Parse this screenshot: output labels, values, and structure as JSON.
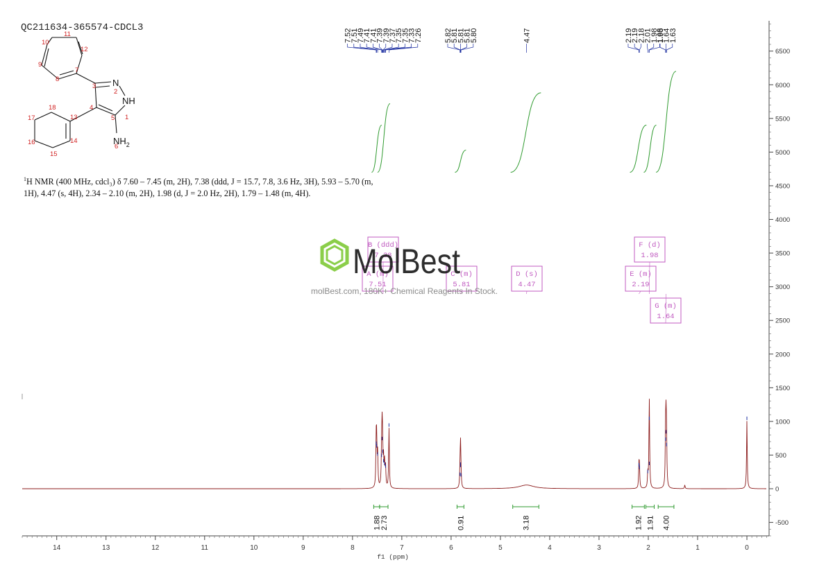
{
  "sample_id": "QC211634-365574-CDCL3",
  "nmr_description": {
    "superscript": "1",
    "line1": "H NMR (400 MHz, cdcl₃) δ 7.60 – 7.45 (m, 2H), 7.38 (ddd, J = 15.7, 7.8, 3.6 Hz, 3H), 5.93 – 5.70 (m,",
    "line2": "1H), 4.47 (s, 4H), 2.34 – 2.10 (m, 2H), 1.98 (d, J = 2.0 Hz, 2H), 1.79 – 1.48 (m, 4H)."
  },
  "structure": {
    "atom_numbers": [
      "1",
      "2",
      "3",
      "4",
      "5",
      "6",
      "7",
      "8",
      "9",
      "10",
      "11",
      "12",
      "13",
      "14",
      "15",
      "16",
      "17",
      "18"
    ],
    "labels": {
      "N": "N",
      "NH": "NH",
      "NH2": "NH",
      "NH2_sub": "2"
    }
  },
  "watermark": {
    "brand": "MolBest",
    "url": "molBest.com, 180K+ Chemical Reagents In Stock."
  },
  "colors": {
    "spectrum": "#8b1a1a",
    "peak_marker": "#1c2ea0",
    "integral": "#2e9a2e",
    "region_box": "#c05ac0",
    "logo_green": "#7cc832",
    "axis": "#444444"
  },
  "chart_data": {
    "type": "line",
    "title": "QC211634-365574-CDCL3",
    "xlabel": "f1 (ppm)",
    "ylabel": "",
    "x_reversed": true,
    "xlim": [
      14.7,
      -0.45
    ],
    "ylim": [
      -700,
      6950
    ],
    "x_ticks": [
      "14",
      "13",
      "12",
      "11",
      "10",
      "9",
      "8",
      "7",
      "6",
      "5",
      "4",
      "3",
      "2",
      "1",
      "0"
    ],
    "y_ticks": [
      "-500",
      "0",
      "500",
      "1000",
      "1500",
      "2000",
      "2500",
      "3000",
      "3500",
      "4000",
      "4500",
      "5000",
      "5500",
      "6000",
      "6500"
    ],
    "peaks": [
      {
        "ppm": 7.52,
        "height": 640
      },
      {
        "ppm": 7.51,
        "height": 600
      },
      {
        "ppm": 7.49,
        "height": 480
      },
      {
        "ppm": 7.41,
        "height": 460
      },
      {
        "ppm": 7.4,
        "height": 710
      },
      {
        "ppm": 7.39,
        "height": 520
      },
      {
        "ppm": 7.37,
        "height": 380
      },
      {
        "ppm": 7.35,
        "height": 340
      },
      {
        "ppm": 7.33,
        "height": 300
      },
      {
        "ppm": 7.26,
        "height": 910
      },
      {
        "ppm": 5.82,
        "height": 180
      },
      {
        "ppm": 5.81,
        "height": 310
      },
      {
        "ppm": 5.81,
        "height": 330
      },
      {
        "ppm": 5.8,
        "height": 170
      },
      {
        "ppm": 4.47,
        "height": 55,
        "width": 0.18
      },
      {
        "ppm": 2.19,
        "height": 320
      },
      {
        "ppm": 2.18,
        "height": 280
      },
      {
        "ppm": 2.01,
        "height": 220
      },
      {
        "ppm": 1.98,
        "height": 1010
      },
      {
        "ppm": 1.98,
        "height": 340
      },
      {
        "ppm": 1.65,
        "height": 700
      },
      {
        "ppm": 1.64,
        "height": 810
      },
      {
        "ppm": 1.63,
        "height": 620
      },
      {
        "ppm": 1.26,
        "height": 55
      },
      {
        "ppm": 0.0,
        "height": 1010
      }
    ],
    "peak_labels": [
      {
        "group": [
          "7.52",
          "7.51",
          "7.49",
          "7.41",
          "7.41",
          "7.39",
          "7.39",
          "7.37",
          "7.35",
          "7.35",
          "7.33",
          "7.26"
        ],
        "ppm": [
          7.52,
          7.51,
          7.49,
          7.41,
          7.4,
          7.39,
          7.38,
          7.37,
          7.35,
          7.34,
          7.33,
          7.26
        ]
      },
      {
        "group": [
          "5.82",
          "5.81",
          "5.81",
          "5.81",
          "5.80"
        ],
        "ppm": [
          5.82,
          5.815,
          5.81,
          5.805,
          5.8
        ]
      },
      {
        "group": [
          "4.47"
        ],
        "ppm": [
          4.47
        ]
      },
      {
        "group": [
          "2.19",
          "2.19",
          "2.18",
          "2.01",
          "1.98",
          "1.98"
        ],
        "ppm": [
          2.19,
          2.185,
          2.18,
          2.01,
          1.985,
          1.98
        ]
      },
      {
        "group": [
          "1.65",
          "1.64",
          "1.63"
        ],
        "ppm": [
          1.65,
          1.64,
          1.63
        ]
      }
    ],
    "integrals": [
      {
        "from": 7.57,
        "to": 7.45,
        "value": "1.88",
        "curve_start": 4700,
        "curve_end": 5400
      },
      {
        "from": 7.45,
        "to": 7.28,
        "value": "2.73",
        "curve_start": 4700,
        "curve_end": 5720
      },
      {
        "from": 5.88,
        "to": 5.74,
        "value": "0.91",
        "curve_start": 4700,
        "curve_end": 5030
      },
      {
        "from": 4.75,
        "to": 4.22,
        "value": "3.18",
        "curve_start": 4700,
        "curve_end": 5880
      },
      {
        "from": 2.33,
        "to": 2.08,
        "value": "1.92",
        "curve_start": 4700,
        "curve_end": 5400
      },
      {
        "from": 2.05,
        "to": 1.88,
        "value": "1.91",
        "curve_start": 4700,
        "curve_end": 5400
      },
      {
        "from": 1.8,
        "to": 1.48,
        "value": "4.00",
        "curve_start": 4700,
        "curve_end": 6200
      }
    ],
    "regions": [
      {
        "line1": "B (ddd)",
        "line2": "7.38",
        "ppm": 7.38
      },
      {
        "line1": "A (m)",
        "line2": "7.51",
        "ppm": 7.51
      },
      {
        "line1": "C (m)",
        "line2": "5.81",
        "ppm": 5.81
      },
      {
        "line1": "D (s)",
        "line2": "4.47",
        "ppm": 4.47
      },
      {
        "line1": "E (m)",
        "line2": "2.19",
        "ppm": 2.19
      },
      {
        "line1": "F (d)",
        "line2": "1.98",
        "ppm": 1.98
      },
      {
        "line1": "G (m)",
        "line2": "1.64",
        "ppm": 1.64
      }
    ]
  }
}
